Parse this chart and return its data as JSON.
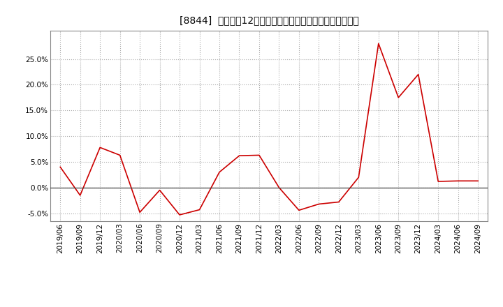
{
  "title": "[8844]  売上高の12か月移動合計の対前年同期増減率の推移",
  "line_color": "#cc0000",
  "background_color": "#ffffff",
  "plot_bg_color": "#ffffff",
  "grid_color": "#aaaaaa",
  "ylim": [
    -0.065,
    0.305
  ],
  "yticks": [
    -0.05,
    0.0,
    0.05,
    0.1,
    0.15,
    0.2,
    0.25
  ],
  "dates": [
    "2019/06",
    "2019/09",
    "2019/12",
    "2020/03",
    "2020/06",
    "2020/09",
    "2020/12",
    "2021/03",
    "2021/06",
    "2021/09",
    "2021/12",
    "2022/03",
    "2022/06",
    "2022/09",
    "2022/12",
    "2023/03",
    "2023/06",
    "2023/09",
    "2023/12",
    "2024/03",
    "2024/06",
    "2024/09"
  ],
  "values": [
    0.04,
    -0.015,
    0.078,
    0.063,
    -0.048,
    -0.005,
    -0.053,
    -0.043,
    0.03,
    0.062,
    0.063,
    0.0,
    -0.044,
    -0.032,
    -0.028,
    0.02,
    0.28,
    0.175,
    0.22,
    0.012,
    0.013,
    0.013
  ],
  "title_fontsize": 11,
  "tick_fontsize": 7.5
}
